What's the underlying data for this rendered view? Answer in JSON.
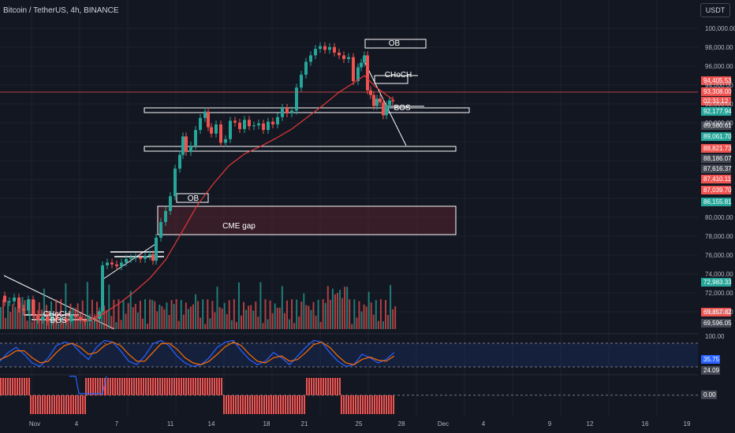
{
  "header": {
    "title": "Bitcoin / TetherUS, 4h, BINANCE",
    "currency": "USDT"
  },
  "colors": {
    "up": "#26a69a",
    "down": "#ef5350",
    "ma": "#e53935",
    "bg": "#131722",
    "grid": "#1e222d",
    "axis_text": "#b2b5be",
    "k_line": "#2962ff",
    "d_line": "#ff6d00"
  },
  "chart_data": {
    "type": "line",
    "title": "Bitcoin / TetherUS, 4h, BINANCE",
    "xlabel": "",
    "ylabel": "",
    "ylim": [
      68500,
      101200
    ],
    "x_ticks": [
      "Nov",
      "4",
      "7",
      "11",
      "14",
      "18",
      "21",
      "25",
      "28",
      "Dec",
      "4",
      "9",
      "12",
      "16",
      "19"
    ],
    "y_ticks": [
      "100,000.00",
      "98,000.00",
      "96,000.00",
      "94,000.00",
      "92,000.00",
      "90,000.00",
      "80,000.00",
      "78,000.00",
      "76,000.00",
      "74,000.00",
      "72,000.00",
      "70,000.00"
    ],
    "price_labels": [
      {
        "text": "94,405.53",
        "color": "#ef5350"
      },
      {
        "text": "93,308.00",
        "color": "#ef5350"
      },
      {
        "text": "02:31:12",
        "color": "#ef5350"
      },
      {
        "text": "92,177.94",
        "color": "#26a69a"
      },
      {
        "text": "89,580.61",
        "color": "#434651"
      },
      {
        "text": "89,061.70",
        "color": "#26a69a"
      },
      {
        "text": "88,821.73",
        "color": "#ef5350"
      },
      {
        "text": "88,186.07",
        "color": "#434651"
      },
      {
        "text": "87,616.37",
        "color": "#434651"
      },
      {
        "text": "87,410.11",
        "color": "#ef5350"
      },
      {
        "text": "87,039.70",
        "color": "#ef5350"
      },
      {
        "text": "86,155.81",
        "color": "#26a69a"
      },
      {
        "text": "72,983.33",
        "color": "#26a69a"
      },
      {
        "text": "69,857.82",
        "color": "#ef5350"
      },
      {
        "text": "69,596.05",
        "color": "#434651"
      }
    ],
    "price_path": [
      [
        0,
        72200
      ],
      [
        8,
        71500
      ],
      [
        14,
        71600
      ],
      [
        20,
        72000
      ],
      [
        26,
        70800
      ],
      [
        32,
        70600
      ],
      [
        38,
        71800
      ],
      [
        44,
        70200
      ],
      [
        50,
        69600
      ],
      [
        56,
        69900
      ],
      [
        62,
        69400
      ],
      [
        68,
        70000
      ],
      [
        74,
        69500
      ],
      [
        80,
        69700
      ],
      [
        86,
        69400
      ],
      [
        92,
        70100
      ],
      [
        98,
        69900
      ],
      [
        104,
        69600
      ],
      [
        110,
        69400
      ],
      [
        116,
        69800
      ],
      [
        122,
        69700
      ],
      [
        128,
        70500
      ],
      [
        132,
        75500
      ],
      [
        138,
        75800
      ],
      [
        144,
        75600
      ],
      [
        150,
        75400
      ],
      [
        156,
        75800
      ],
      [
        162,
        76200
      ],
      [
        168,
        76300
      ],
      [
        174,
        76400
      ],
      [
        180,
        76200
      ],
      [
        186,
        76500
      ],
      [
        192,
        76700
      ],
      [
        196,
        76000
      ],
      [
        200,
        78500
      ],
      [
        206,
        80200
      ],
      [
        212,
        81400
      ],
      [
        218,
        83000
      ],
      [
        224,
        86000
      ],
      [
        230,
        87500
      ],
      [
        234,
        89500
      ],
      [
        238,
        87800
      ],
      [
        244,
        88500
      ],
      [
        250,
        90200
      ],
      [
        256,
        91500
      ],
      [
        262,
        92200
      ],
      [
        266,
        90500
      ],
      [
        270,
        89800
      ],
      [
        276,
        90800
      ],
      [
        282,
        88800
      ],
      [
        288,
        89200
      ],
      [
        294,
        91200
      ],
      [
        300,
        91000
      ],
      [
        306,
        90300
      ],
      [
        312,
        91300
      ],
      [
        318,
        90600
      ],
      [
        324,
        90700
      ],
      [
        330,
        90900
      ],
      [
        336,
        90200
      ],
      [
        342,
        91100
      ],
      [
        348,
        90800
      ],
      [
        354,
        91600
      ],
      [
        360,
        92600
      ],
      [
        366,
        92000
      ],
      [
        372,
        92300
      ],
      [
        378,
        94800
      ],
      [
        384,
        96200
      ],
      [
        390,
        97600
      ],
      [
        396,
        98300
      ],
      [
        402,
        99000
      ],
      [
        408,
        99300
      ],
      [
        414,
        98900
      ],
      [
        420,
        99200
      ],
      [
        426,
        98600
      ],
      [
        432,
        98300
      ],
      [
        438,
        97900
      ],
      [
        444,
        98100
      ],
      [
        450,
        95500
      ],
      [
        456,
        97000
      ],
      [
        460,
        97500
      ],
      [
        464,
        98300
      ],
      [
        468,
        94500
      ],
      [
        472,
        94000
      ],
      [
        476,
        92800
      ],
      [
        480,
        93600
      ],
      [
        484,
        93200
      ],
      [
        488,
        91800
      ],
      [
        492,
        92900
      ],
      [
        496,
        93400
      ],
      [
        500,
        93308
      ]
    ],
    "ma_path": [
      [
        110,
        69500
      ],
      [
        130,
        70200
      ],
      [
        150,
        71300
      ],
      [
        170,
        72600
      ],
      [
        190,
        74100
      ],
      [
        210,
        76100
      ],
      [
        230,
        79000
      ],
      [
        250,
        82000
      ],
      [
        270,
        84300
      ],
      [
        290,
        86300
      ],
      [
        310,
        87600
      ],
      [
        330,
        88400
      ],
      [
        350,
        89300
      ],
      [
        370,
        90300
      ],
      [
        390,
        91600
      ],
      [
        410,
        92900
      ],
      [
        430,
        94300
      ],
      [
        450,
        95400
      ],
      [
        462,
        96100
      ],
      [
        476,
        94900
      ],
      [
        490,
        94000
      ],
      [
        500,
        93400
      ]
    ],
    "annotations": [
      {
        "text": "OB"
      },
      {
        "text": "CHoCH"
      },
      {
        "text": "BOS"
      },
      {
        "text": "OB"
      },
      {
        "text": "CME gap"
      },
      {
        "text": "CHoCH"
      },
      {
        "text": "BOS"
      }
    ],
    "oscillator": {
      "levels": [
        "100.00",
        "35.75",
        "24.09"
      ],
      "k": [
        0.3,
        0.55,
        0.7,
        0.5,
        0.25,
        0.15,
        0.4,
        0.75,
        0.85,
        0.8,
        0.55,
        0.35,
        0.7,
        0.9,
        0.85,
        0.6,
        0.3,
        0.2,
        0.45,
        0.8,
        0.9,
        0.75,
        0.45,
        0.25,
        0.15,
        0.2,
        0.4,
        0.7,
        0.85,
        0.9,
        0.6,
        0.35,
        0.2,
        0.3,
        0.55,
        0.4,
        0.2,
        0.45,
        0.7,
        0.9,
        0.85,
        0.55,
        0.3,
        0.15,
        0.2,
        0.5,
        0.4,
        0.25,
        0.35,
        0.55
      ],
      "d": [
        0.35,
        0.45,
        0.6,
        0.6,
        0.4,
        0.25,
        0.3,
        0.55,
        0.75,
        0.82,
        0.7,
        0.5,
        0.55,
        0.75,
        0.85,
        0.75,
        0.5,
        0.3,
        0.3,
        0.55,
        0.8,
        0.82,
        0.65,
        0.4,
        0.25,
        0.2,
        0.3,
        0.5,
        0.72,
        0.85,
        0.75,
        0.5,
        0.3,
        0.25,
        0.4,
        0.45,
        0.3,
        0.35,
        0.55,
        0.78,
        0.85,
        0.7,
        0.45,
        0.25,
        0.2,
        0.35,
        0.42,
        0.33,
        0.3,
        0.45
      ]
    },
    "histogram": {
      "level": "0.00"
    }
  }
}
